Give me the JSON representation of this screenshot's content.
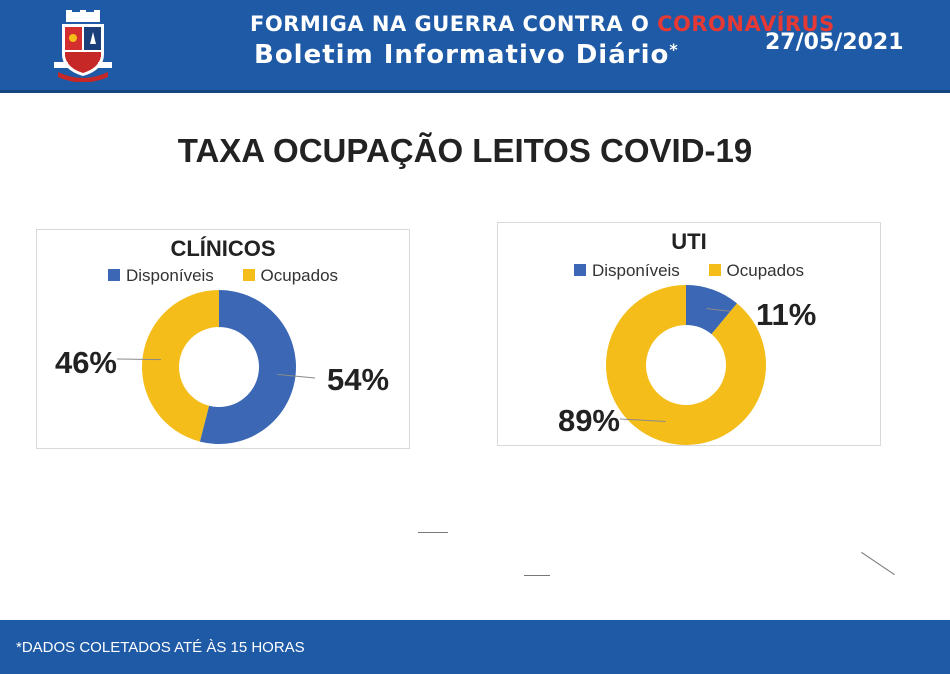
{
  "header": {
    "line1_prefix": "FORMIGA NA GUERRA CONTRA O ",
    "line1_highlight": "CORONAVÍRUS",
    "line2": "Boletim Informativo Diário",
    "line2_mark": "*",
    "date": "27/05/2021",
    "crest_icon": "city-coat-of-arms-icon"
  },
  "page_title": "TAXA OCUPAÇÃO LEITOS COVID-19",
  "colors": {
    "header_bg": "#1f5aa6",
    "disponiveis": "#3b67b4",
    "ocupados": "#f4bd1a",
    "highlight_red": "#e53935"
  },
  "chart_data": [
    {
      "type": "pie",
      "title": "CLÍNICOS",
      "legend": [
        "Disponíveis",
        "Ocupados"
      ],
      "series": [
        {
          "name": "Disponíveis",
          "value": 54,
          "label": "54%"
        },
        {
          "name": "Ocupados",
          "value": 46,
          "label": "46%"
        }
      ]
    },
    {
      "type": "pie",
      "title": "UTI",
      "legend": [
        "Disponíveis",
        "Ocupados"
      ],
      "series": [
        {
          "name": "Disponíveis",
          "value": 11,
          "label": "11%"
        },
        {
          "name": "Ocupados",
          "value": 89,
          "label": "89%"
        }
      ]
    }
  ],
  "footer": {
    "note": "*DADOS COLETADOS ATÉ ÀS 15 HORAS"
  }
}
